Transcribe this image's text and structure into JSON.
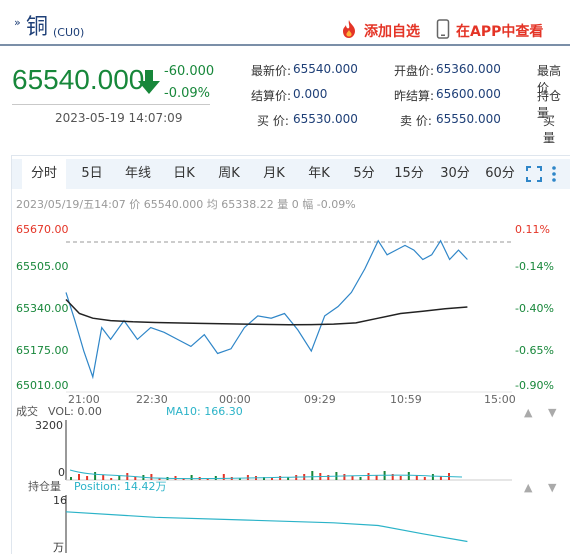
{
  "header": {
    "title_prefix": "»",
    "title": "铜",
    "code": "(CU0)",
    "add_favorite_label": "添加自选",
    "open_app_label": "在APP中查看"
  },
  "quote": {
    "price": "65540.000",
    "change": "-60.000",
    "change_pct": "-0.09%",
    "datetime": "2023-05-19 14:07:09",
    "fields": [
      {
        "label": "最新价:",
        "value": "65540.000"
      },
      {
        "label": "结算价:",
        "value": "0.000"
      },
      {
        "label": "买 价:",
        "value": "65530.000"
      },
      {
        "label": "开盘价:",
        "value": "65360.000"
      },
      {
        "label": "昨结算:",
        "value": "65600.000"
      },
      {
        "label": "卖 价:",
        "value": "65550.000"
      },
      {
        "label": "最高价",
        "value": ""
      },
      {
        "label": "持仓量",
        "value": ""
      },
      {
        "label": "买 量",
        "value": ""
      }
    ]
  },
  "tabs": [
    {
      "label": "分时",
      "active": true
    },
    {
      "label": "5日"
    },
    {
      "label": "年线"
    },
    {
      "label": "日K"
    },
    {
      "label": "周K"
    },
    {
      "label": "月K"
    },
    {
      "label": "年K"
    },
    {
      "label": "5分"
    },
    {
      "label": "15分"
    },
    {
      "label": "30分"
    },
    {
      "label": "60分"
    }
  ],
  "toolbar_icons": [
    "fullscreen-icon",
    "more-vertical-icon"
  ],
  "info_line": "2023/05/19/五14:07 价 65540.000 均 65338.22 量 0 幅 -0.09%",
  "colors": {
    "price_line": "#2f86c8",
    "avg_line": "#222222",
    "up": "#e43426",
    "down": "#17873a",
    "ma10": "#2bb3c8",
    "accent": "#1e3f77"
  },
  "chart_data": [
    {
      "type": "line",
      "title": "",
      "yticks_left": [
        "65670.00",
        "65505.00",
        "65340.00",
        "65175.00",
        "65010.00"
      ],
      "yticks_right": [
        "0.11%",
        "-0.14%",
        "-0.40%",
        "-0.65%",
        "-0.90%"
      ],
      "ylim": [
        65010,
        65670
      ],
      "reference_price": 65600,
      "xticks": [
        "21:00",
        "22:30",
        "00:00",
        "09:29",
        "10:59",
        "15:00"
      ],
      "series": [
        {
          "name": "价",
          "x_fraction_of_session": [
            0.0,
            0.02,
            0.04,
            0.06,
            0.08,
            0.1,
            0.13,
            0.16,
            0.19,
            0.22,
            0.25,
            0.28,
            0.31,
            0.34,
            0.37,
            0.4,
            0.43,
            0.46,
            0.49,
            0.52,
            0.55,
            0.58,
            0.61,
            0.64,
            0.67,
            0.7,
            0.72,
            0.74,
            0.76,
            0.78,
            0.8,
            0.82,
            0.84,
            0.86,
            0.88,
            0.9
          ],
          "values": [
            65400,
            65280,
            65150,
            65040,
            65250,
            65200,
            65280,
            65200,
            65250,
            65230,
            65200,
            65170,
            65220,
            65140,
            65160,
            65250,
            65300,
            65290,
            65310,
            65240,
            65150,
            65300,
            65340,
            65400,
            65500,
            65620,
            65560,
            65580,
            65600,
            65580,
            65540,
            65560,
            65620,
            65540,
            65580,
            65540
          ]
        },
        {
          "name": "均",
          "x_fraction_of_session": [
            0.0,
            0.03,
            0.06,
            0.1,
            0.15,
            0.2,
            0.3,
            0.4,
            0.5,
            0.55,
            0.6,
            0.65,
            0.7,
            0.75,
            0.8,
            0.85,
            0.9
          ],
          "values": [
            65370,
            65310,
            65290,
            65280,
            65275,
            65272,
            65268,
            65265,
            65262,
            65263,
            65265,
            65270,
            65290,
            65310,
            65320,
            65330,
            65338
          ]
        }
      ]
    },
    {
      "type": "bar",
      "title": "成交",
      "legend": [
        {
          "label": "VOL: 0.00"
        },
        {
          "label": "MA10: 166.30"
        }
      ],
      "yticks": [
        "3200",
        "0"
      ],
      "ylim": [
        0,
        3200
      ]
    },
    {
      "type": "line",
      "title": "持仓量",
      "legend": [
        {
          "label": "Position: 14.42万"
        }
      ],
      "yticks": [
        "16"
      ],
      "unit": "万",
      "series": [
        {
          "x_fraction_of_session": [
            0.0,
            0.2,
            0.4,
            0.6,
            0.7,
            0.8,
            0.9
          ],
          "values": [
            15.5,
            15.3,
            15.2,
            15.1,
            15.0,
            14.7,
            14.42
          ]
        }
      ]
    }
  ]
}
